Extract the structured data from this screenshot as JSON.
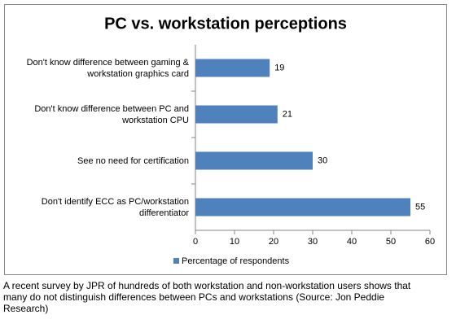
{
  "chart_data": {
    "type": "hbar",
    "title": "PC vs. workstation perceptions",
    "categories": [
      "Don't know difference between gaming & workstation graphics card",
      "Don't know difference between PC and workstation CPU",
      "See no need for certification",
      "Don't identify ECC as PC/workstation differentiator"
    ],
    "series": [
      {
        "name": "Percentage of respondents",
        "color": "#4f81bd",
        "values": [
          19,
          21,
          30,
          55
        ]
      }
    ],
    "xlim": [
      0,
      60
    ],
    "xticks": [
      0,
      10,
      20,
      30,
      40,
      50,
      60
    ],
    "grid": false,
    "legend": "bottom"
  },
  "caption": "A recent survey by JPR of hundreds of both workstation and non-workstation users shows that many do not distinguish differences between PCs and workstations (Source: Jon Peddie Research)"
}
